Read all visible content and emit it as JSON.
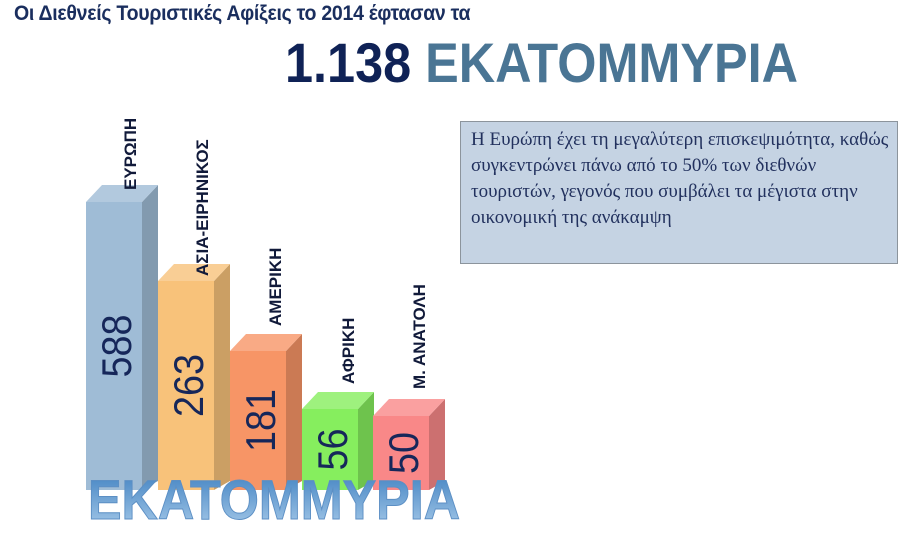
{
  "header": {
    "subtitle": "Οι Διεθνείς Τουριστικές Αφίξεις το 2014 έφτασαν τα",
    "total": "1.138",
    "unit": "ΕΚΑΤΟΜΜΥΡΙΑ"
  },
  "note": {
    "text": "Η Ευρώπη έχει τη μεγαλύτερη επισκεψιμότητα, καθώς συγκεντρώνει πάνω από το 50% των διεθνών τουριστών, γεγονός που συμβάλει τα μέγιστα στην οικονομική της ανάκαμψη"
  },
  "chart_data": {
    "type": "bar",
    "title": "",
    "categories": [
      "ΕΥΡΩΠΗ",
      "ΑΣΙΑ-ΕΙΡΗΝΙΚΟΣ",
      "ΑΜΕΡΙΚΗ",
      "ΑΦΡΙΚΗ",
      "Μ. ΑΝΑΤΟΛΗ"
    ],
    "values": [
      588,
      263,
      181,
      56,
      50
    ],
    "value_labels": [
      "588",
      "263",
      "181",
      "56",
      "50"
    ],
    "colors": [
      "#9fbcd6",
      "#f8c27a",
      "#f79566",
      "#86ee5e",
      "#f98888"
    ],
    "unit_label": "ΕΚΑΤΟΜΜΥΡΙΑ",
    "style": "3d-columns"
  }
}
